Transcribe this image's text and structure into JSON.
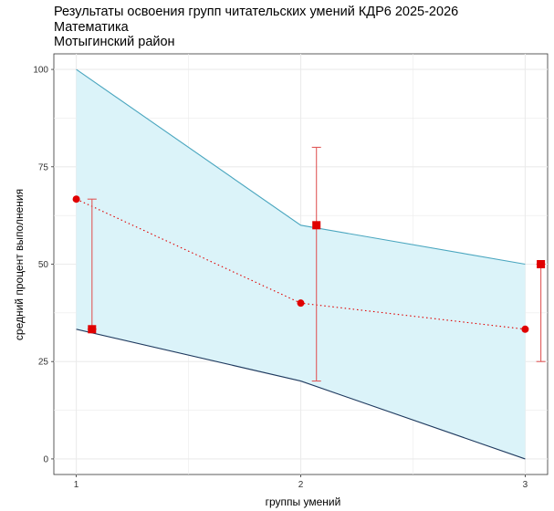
{
  "chart_data": {
    "type": "line",
    "title": "Результаты освоения групп читательских умений КДР6 2025-2026",
    "subtitle_lines": [
      "Математика",
      "Мотыгинский район"
    ],
    "xlabel": "группы умений",
    "ylabel": "средний процент выполнения",
    "x": [
      1,
      2,
      3
    ],
    "x_tick_labels": [
      "1",
      "2",
      "3"
    ],
    "xlim": [
      0.9,
      3.1
    ],
    "ylim": [
      -4,
      104
    ],
    "y_ticks": [
      0,
      25,
      50,
      75,
      100
    ],
    "y_tick_labels": [
      "0",
      "25",
      "50",
      "75",
      "100"
    ],
    "grid": true,
    "legend": "none",
    "band": {
      "upper": [
        100,
        60,
        50
      ],
      "lower": [
        33.3,
        20,
        0
      ]
    },
    "series": [
      {
        "kind": "dotted-line-circles",
        "values": [
          66.7,
          40,
          33.3
        ]
      },
      {
        "kind": "squares-with-errorbars",
        "x_offset": 0.07,
        "values": [
          33.3,
          60,
          50
        ],
        "err_low": [
          33.3,
          20,
          25
        ],
        "err_high": [
          66.7,
          80,
          50
        ]
      }
    ],
    "colors": {
      "band_fill": "#dbf3f9",
      "band_upper": "#4aa6bf",
      "band_lower": "#1f3a5f",
      "points": "#e00000",
      "errorbar": "#e05a5a",
      "grid": "#ebebeb"
    }
  }
}
